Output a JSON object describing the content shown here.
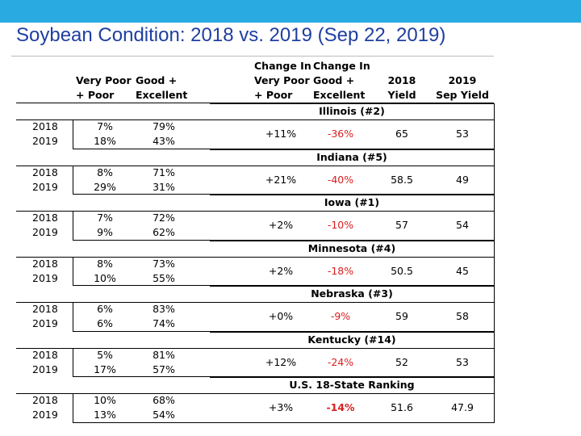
{
  "slide": {
    "title": "Soybean Condition: 2018 vs. 2019 (Sep 22, 2019)"
  },
  "table": {
    "headers": {
      "very_poor_poor": [
        "Very Poor",
        "+ Poor"
      ],
      "good_excellent": [
        "Good +",
        "Excellent"
      ],
      "change_vp_p": [
        "Change In",
        "Very Poor",
        "+ Poor"
      ],
      "change_g_e": [
        "Change In",
        "Good +",
        "Excellent"
      ],
      "yield_2018": [
        "2018",
        "Yield"
      ],
      "yield_2019": [
        "2019",
        "Sep Yield"
      ]
    },
    "groups": [
      {
        "state": "Illinois (#2)",
        "years": [
          "2018",
          "2019"
        ],
        "vp_p": [
          "7%",
          "18%"
        ],
        "g_e": [
          "79%",
          "43%"
        ],
        "change_vp_p": "+11%",
        "change_g_e": "-36%",
        "yield_2018": "65",
        "yield_2019": "53"
      },
      {
        "state": "Indiana (#5)",
        "years": [
          "2018",
          "2019"
        ],
        "vp_p": [
          "8%",
          "29%"
        ],
        "g_e": [
          "71%",
          "31%"
        ],
        "change_vp_p": "+21%",
        "change_g_e": "-40%",
        "yield_2018": "58.5",
        "yield_2019": "49"
      },
      {
        "state": "Iowa (#1)",
        "years": [
          "2018",
          "2019"
        ],
        "vp_p": [
          "7%",
          "9%"
        ],
        "g_e": [
          "72%",
          "62%"
        ],
        "change_vp_p": "+2%",
        "change_g_e": "-10%",
        "yield_2018": "57",
        "yield_2019": "54"
      },
      {
        "state": "Minnesota (#4)",
        "years": [
          "2018",
          "2019"
        ],
        "vp_p": [
          "8%",
          "10%"
        ],
        "g_e": [
          "73%",
          "55%"
        ],
        "change_vp_p": "+2%",
        "change_g_e": "-18%",
        "yield_2018": "50.5",
        "yield_2019": "45"
      },
      {
        "state": "Nebraska (#3)",
        "years": [
          "2018",
          "2019"
        ],
        "vp_p": [
          "6%",
          "6%"
        ],
        "g_e": [
          "83%",
          "74%"
        ],
        "change_vp_p": "+0%",
        "change_g_e": "-9%",
        "yield_2018": "59",
        "yield_2019": "58"
      },
      {
        "state": "Kentucky (#14)",
        "years": [
          "2018",
          "2019"
        ],
        "vp_p": [
          "5%",
          "17%"
        ],
        "g_e": [
          "81%",
          "57%"
        ],
        "change_vp_p": "+12%",
        "change_g_e": "-24%",
        "yield_2018": "52",
        "yield_2019": "53"
      },
      {
        "state": "U.S. 18-State Ranking",
        "years": [
          "2018",
          "2019"
        ],
        "vp_p": [
          "10%",
          "13%"
        ],
        "g_e": [
          "68%",
          "54%"
        ],
        "change_vp_p": "+3%",
        "change_g_e": "-14%",
        "yield_2018": "51.6",
        "yield_2019": "47.9"
      }
    ]
  },
  "colors": {
    "accent_bar": "#29abe2",
    "title": "#1f3fa0",
    "negative": "#d81e1e"
  }
}
